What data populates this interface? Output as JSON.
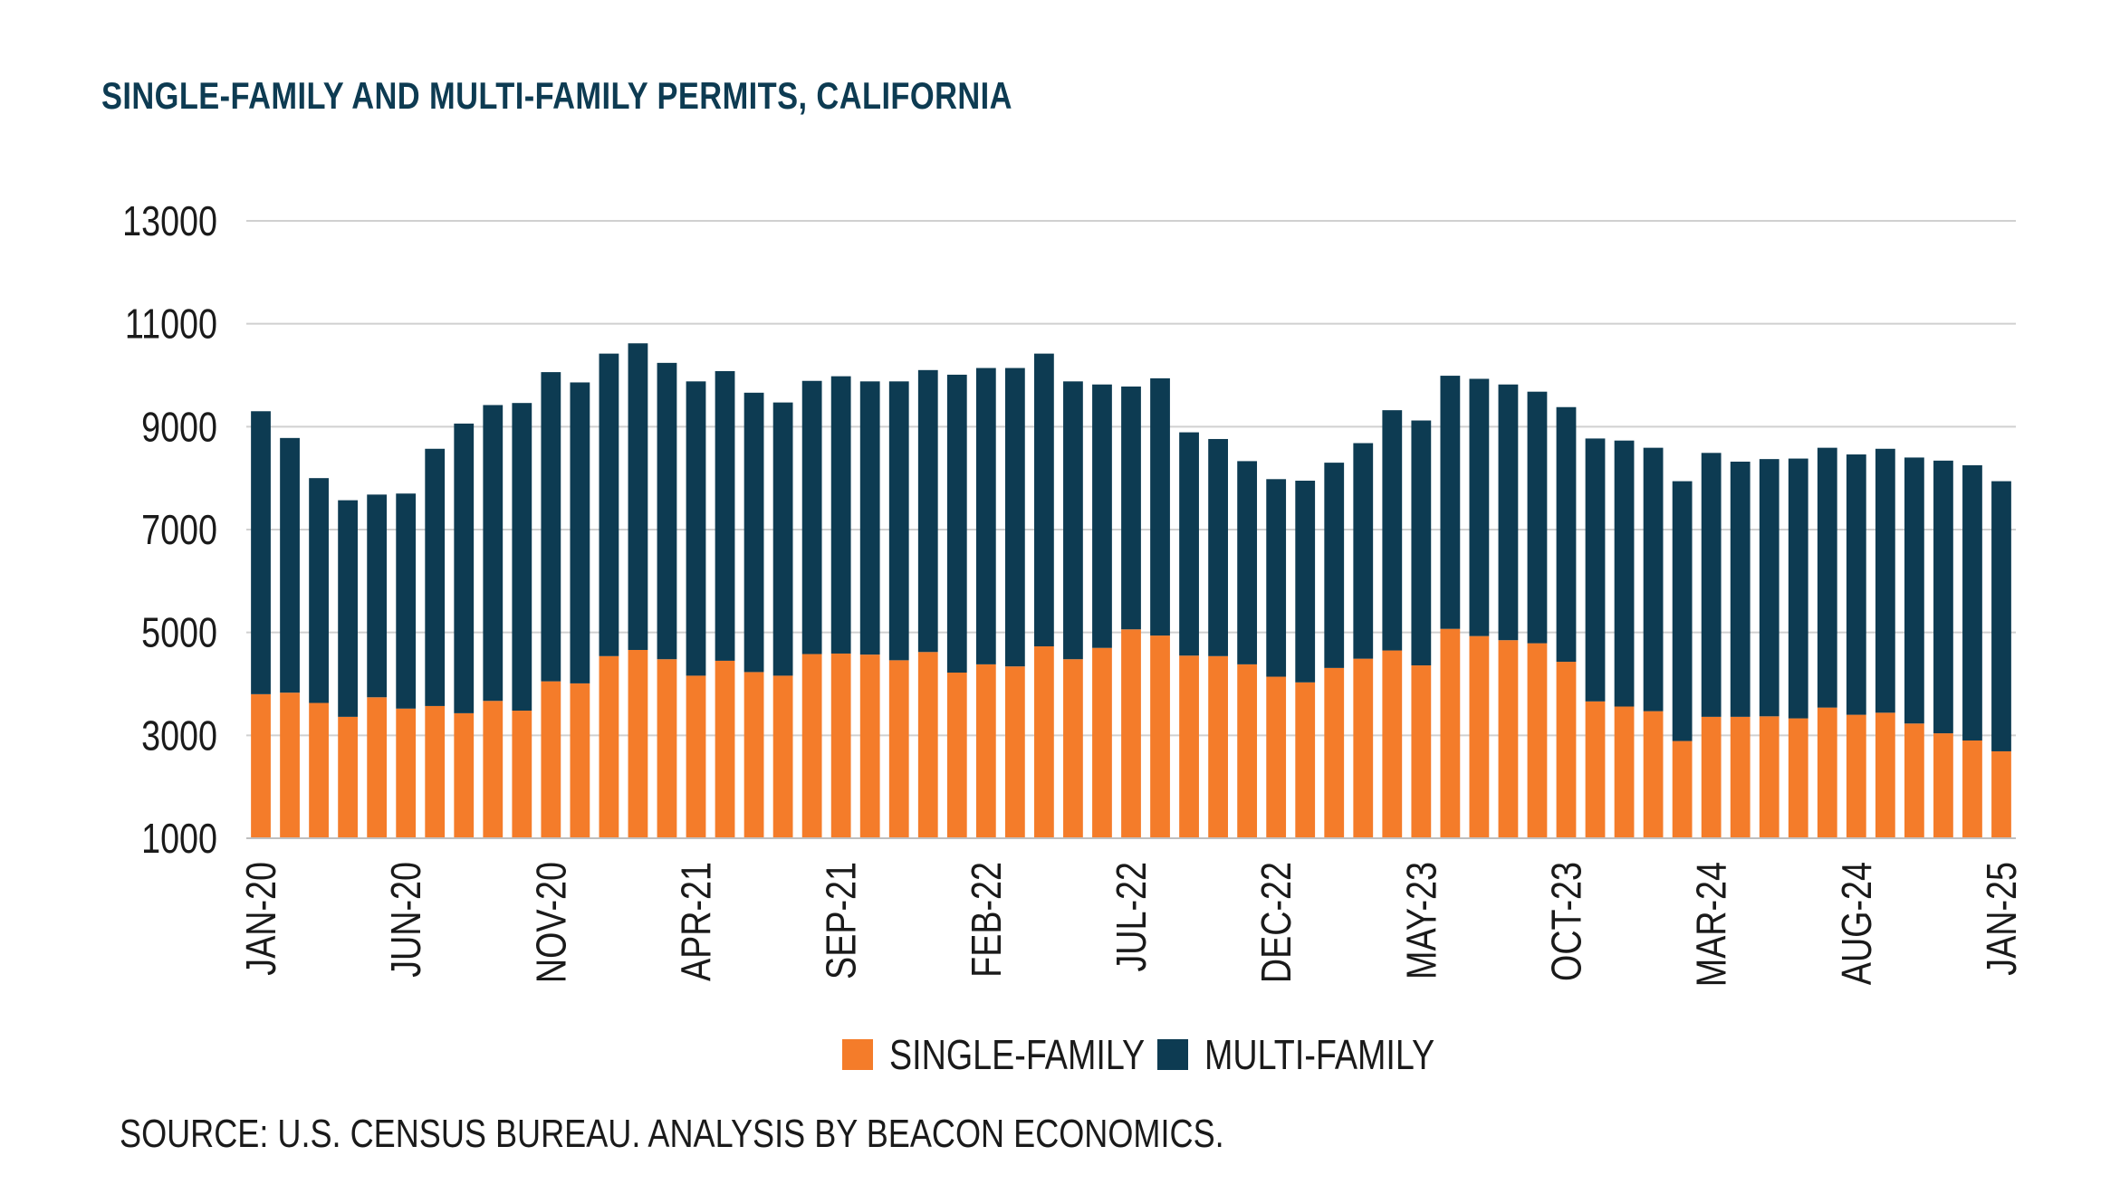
{
  "chart_data": {
    "type": "bar",
    "stacked": true,
    "title": "SINGLE-FAMILY AND MULTI-FAMILY PERMITS, CALIFORNIA",
    "source": "SOURCE: U.S. CENSUS BUREAU. ANALYSIS BY BEACON ECONOMICS.",
    "ylim": [
      1000,
      13000
    ],
    "yticks": [
      1000,
      3000,
      5000,
      7000,
      9000,
      11000,
      13000
    ],
    "grid": true,
    "legend_position": "bottom",
    "x_tick_labels": [
      "JAN-20",
      "JUN-20",
      "NOV-20",
      "APR-21",
      "SEP-21",
      "FEB-22",
      "JUL-22",
      "DEC-22",
      "MAY-23",
      "OCT-23",
      "MAR-24",
      "AUG-24",
      "JAN-25"
    ],
    "x_tick_every": 5,
    "categories": [
      "JAN-20",
      "FEB-20",
      "MAR-20",
      "APR-20",
      "MAY-20",
      "JUN-20",
      "JUL-20",
      "AUG-20",
      "SEP-20",
      "OCT-20",
      "NOV-20",
      "DEC-20",
      "JAN-21",
      "FEB-21",
      "MAR-21",
      "APR-21",
      "MAY-21",
      "JUN-21",
      "JUL-21",
      "AUG-21",
      "SEP-21",
      "OCT-21",
      "NOV-21",
      "DEC-21",
      "JAN-22",
      "FEB-22",
      "MAR-22",
      "APR-22",
      "MAY-22",
      "JUN-22",
      "JUL-22",
      "AUG-22",
      "SEP-22",
      "OCT-22",
      "NOV-22",
      "DEC-22",
      "JAN-23",
      "FEB-23",
      "MAR-23",
      "APR-23",
      "MAY-23",
      "JUN-23",
      "JUL-23",
      "AUG-23",
      "SEP-23",
      "OCT-23",
      "NOV-23",
      "DEC-23",
      "JAN-24",
      "FEB-24",
      "MAR-24",
      "APR-24",
      "MAY-24",
      "JUN-24",
      "JUL-24",
      "AUG-24",
      "SEP-24",
      "OCT-24",
      "NOV-24",
      "DEC-24",
      "JAN-25"
    ],
    "series": [
      {
        "name": "SINGLE-FAMILY",
        "color": "#f47c2a",
        "values": [
          3800,
          3830,
          3630,
          3360,
          3740,
          3520,
          3570,
          3430,
          3670,
          3480,
          4050,
          4010,
          4540,
          4660,
          4480,
          4160,
          4450,
          4230,
          4160,
          4580,
          4590,
          4570,
          4460,
          4620,
          4220,
          4380,
          4340,
          4730,
          4480,
          4700,
          5060,
          4940,
          4550,
          4540,
          4380,
          4140,
          4030,
          4310,
          4490,
          4650,
          4360,
          5070,
          4930,
          4850,
          4790,
          4430,
          3660,
          3560,
          3470,
          2890,
          3360,
          3360,
          3370,
          3330,
          3540,
          3400,
          3440,
          3230,
          3040,
          2900,
          2690
        ]
      },
      {
        "name": "MULTI-FAMILY",
        "color": "#0d3b52",
        "values": [
          5500,
          4950,
          4370,
          4210,
          3940,
          4180,
          5000,
          5630,
          5750,
          5980,
          6010,
          5850,
          5880,
          5960,
          5760,
          5720,
          5630,
          5430,
          5310,
          5310,
          5390,
          5310,
          5420,
          5480,
          5790,
          5760,
          5800,
          5690,
          5400,
          5120,
          4720,
          5000,
          4340,
          4220,
          3950,
          3840,
          3920,
          3990,
          4190,
          4670,
          4760,
          4920,
          5000,
          4970,
          4890,
          4950,
          5110,
          5170,
          5120,
          5050,
          5130,
          4960,
          5000,
          5050,
          5050,
          5060,
          5130,
          5170,
          5300,
          5350,
          5250
        ]
      }
    ]
  }
}
